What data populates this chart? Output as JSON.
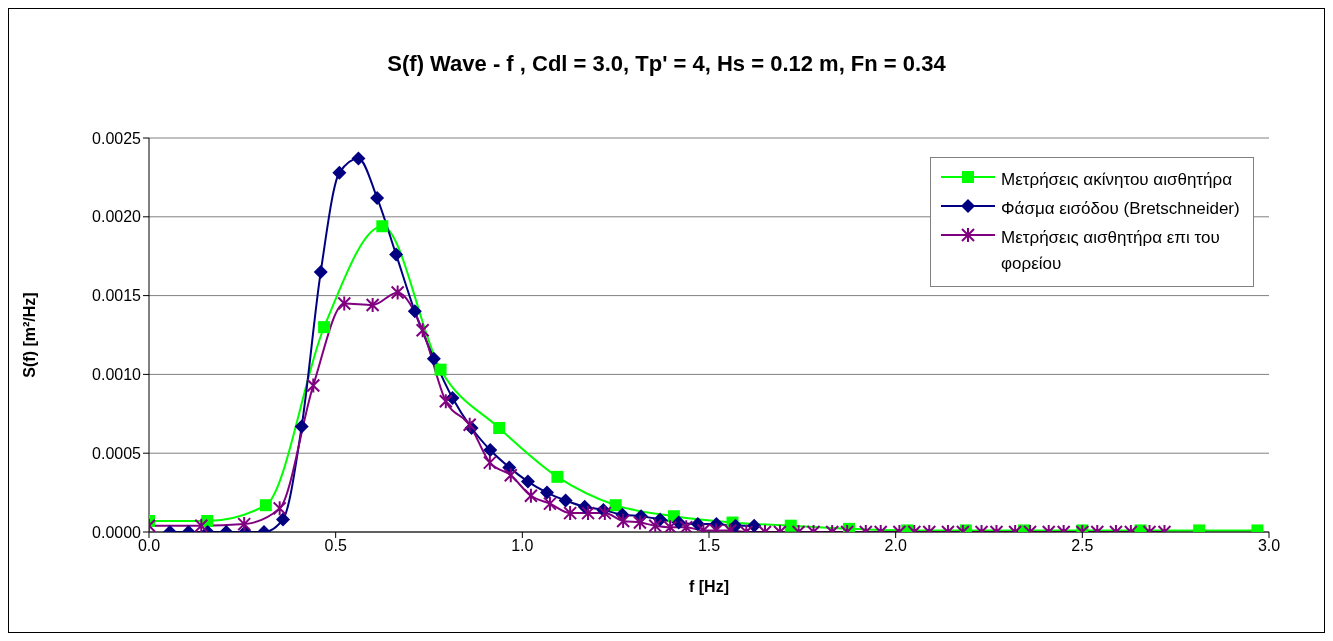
{
  "chart_data": {
    "type": "line",
    "title": "S(f) Wave - f , Cdl = 3.0, Tp' = 4, Hs = 0.12 m, Fn = 0.34",
    "xlabel": "f [Hz]",
    "ylabel": "S(f) [m²/Hz]",
    "xlim": [
      0,
      3.0
    ],
    "xticks": [
      {
        "value": 0,
        "label": "0.0"
      },
      {
        "value": 0.5,
        "label": "0.5"
      },
      {
        "value": 1,
        "label": "1.0"
      },
      {
        "value": 1.5,
        "label": "1.5"
      },
      {
        "value": 2,
        "label": "2.0"
      },
      {
        "value": 2.5,
        "label": "2.5"
      },
      {
        "value": 3,
        "label": "3.0"
      }
    ],
    "ylim": [
      0,
      0.0025
    ],
    "yticks": [
      {
        "value": 0,
        "label": "0.0000"
      },
      {
        "value": 0.0005,
        "label": "0.0005"
      },
      {
        "value": 0.001,
        "label": "0.0010"
      },
      {
        "value": 0.0015,
        "label": "0.0015"
      },
      {
        "value": 0.002,
        "label": "0.0020"
      },
      {
        "value": 0.0025,
        "label": "0.0025"
      }
    ],
    "grid": "y",
    "legend": "top right",
    "series": [
      {
        "name": "Μετρήσεις ακίνητου αισθητήρα",
        "color": "#00ff00",
        "marker": "square",
        "x": [
          0,
          0.156,
          0.313,
          0.469,
          0.625,
          0.781,
          0.938,
          1.094,
          1.25,
          1.406,
          1.563,
          1.719,
          1.875,
          2.031,
          2.188,
          2.344,
          2.5,
          2.656,
          2.813,
          2.969
        ],
        "values": [
          7e-05,
          7e-05,
          0.00017,
          0.0013,
          0.00194,
          0.00103,
          0.00066,
          0.00035,
          0.00017,
          0.0001,
          6e-05,
          4e-05,
          2e-05,
          1e-05,
          1e-05,
          1e-05,
          1e-05,
          1e-05,
          1e-05,
          1e-05
        ]
      },
      {
        "name": "Φάσμα εισόδου (Bretschneider)",
        "color": "#000080",
        "marker": "diamond",
        "x": [
          0.056,
          0.106,
          0.157,
          0.207,
          0.258,
          0.308,
          0.359,
          0.409,
          0.46,
          0.51,
          0.561,
          0.611,
          0.662,
          0.712,
          0.763,
          0.813,
          0.864,
          0.914,
          0.965,
          1.015,
          1.066,
          1.116,
          1.167,
          1.217,
          1.268,
          1.318,
          1.369,
          1.419,
          1.47,
          1.52,
          1.571,
          1.621
        ],
        "values": [
          0,
          0,
          0,
          0,
          0,
          0,
          8e-05,
          0.00067,
          0.00165,
          0.00228,
          0.00237,
          0.00212,
          0.00176,
          0.0014,
          0.0011,
          0.00085,
          0.00066,
          0.00052,
          0.00041,
          0.00032,
          0.00025,
          0.0002,
          0.00016,
          0.00014,
          0.00011,
          0.0001,
          8e-05,
          6e-05,
          5e-05,
          5e-05,
          4e-05,
          4e-05
        ]
      },
      {
        "name": "Μετρήσεις αισθητήρα επι του φορείου",
        "color": "#800080",
        "marker": "cross",
        "x": [
          0,
          0.14,
          0.255,
          0.35,
          0.44,
          0.523,
          0.599,
          0.666,
          0.733,
          0.795,
          0.859,
          0.913,
          0.969,
          1.023,
          1.074,
          1.128,
          1.176,
          1.221,
          1.27,
          1.315,
          1.356,
          1.396,
          1.439,
          1.485,
          1.519,
          1.557,
          1.6,
          1.65,
          1.69,
          1.74,
          1.78,
          1.83,
          1.87,
          1.92,
          1.96,
          2.01,
          2.05,
          2.09,
          2.14,
          2.18,
          2.23,
          2.27,
          2.32,
          2.36,
          2.41,
          2.45,
          2.5,
          2.54,
          2.59,
          2.63,
          2.68,
          2.72
        ],
        "values": [
          4e-05,
          4e-05,
          5e-05,
          0.00015,
          0.00093,
          0.00145,
          0.00144,
          0.00152,
          0.00128,
          0.00083,
          0.00068,
          0.00044,
          0.00036,
          0.00023,
          0.00018,
          0.00012,
          0.00012,
          0.00012,
          7e-05,
          6e-05,
          4e-05,
          3e-05,
          3e-05,
          1e-05,
          1e-05,
          1e-05,
          0,
          0,
          0,
          0,
          0,
          0,
          0,
          0,
          0,
          0,
          0,
          0,
          0,
          0,
          0,
          0,
          0,
          0,
          0,
          0,
          0,
          0,
          0,
          0,
          0,
          0
        ]
      }
    ]
  }
}
